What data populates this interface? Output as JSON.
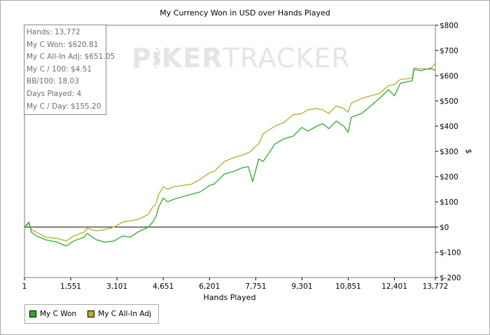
{
  "chart_data": {
    "type": "line",
    "title": "My Currency Won in USD over Hands Played",
    "xlabel": "Hands Played",
    "ylabel": "$",
    "xlim": [
      1,
      13772
    ],
    "ylim": [
      -200,
      800
    ],
    "x_ticks": [
      1,
      1551,
      3101,
      4651,
      6201,
      7751,
      9301,
      10851,
      12401,
      13772
    ],
    "x_tick_labels": [
      "1",
      "1,551",
      "3,101",
      "4,651",
      "6,201",
      "7,751",
      "9,301",
      "10,851",
      "12,401",
      "13,772"
    ],
    "y_ticks": [
      -200,
      -100,
      0,
      100,
      200,
      300,
      400,
      500,
      600,
      700,
      800
    ],
    "y_tick_labels": [
      "$-200",
      "$-100",
      "$0",
      "$100",
      "$200",
      "$300",
      "$400",
      "$500",
      "$600",
      "$700",
      "$800"
    ],
    "grid": false,
    "legend_position": "bottom-left",
    "series": [
      {
        "name": "My C Won",
        "color": "#2eaa2e",
        "x": [
          1,
          150,
          230,
          400,
          700,
          1100,
          1400,
          1650,
          2000,
          2100,
          2400,
          2700,
          3000,
          3300,
          3550,
          3800,
          4150,
          4300,
          4400,
          4500,
          4650,
          4800,
          5000,
          5300,
          5600,
          5900,
          6200,
          6350,
          6700,
          7000,
          7300,
          7500,
          7600,
          7650,
          7850,
          8000,
          8400,
          8700,
          9000,
          9300,
          9500,
          9800,
          10000,
          10200,
          10450,
          10700,
          10850,
          10950,
          11300,
          11600,
          11900,
          12200,
          12400,
          12600,
          13000,
          13050,
          13300,
          13600,
          13772
        ],
        "values": [
          0,
          20,
          -20,
          -35,
          -50,
          -60,
          -75,
          -55,
          -40,
          -25,
          -50,
          -60,
          -55,
          -35,
          -40,
          -20,
          0,
          20,
          40,
          80,
          115,
          100,
          110,
          120,
          130,
          140,
          165,
          170,
          210,
          220,
          235,
          240,
          200,
          180,
          270,
          260,
          330,
          350,
          360,
          395,
          380,
          400,
          410,
          390,
          420,
          400,
          375,
          435,
          450,
          480,
          510,
          545,
          520,
          570,
          580,
          625,
          620,
          630,
          621
        ]
      },
      {
        "name": "My C All-In Adj",
        "color": "#b4ad2a",
        "x": [
          1,
          150,
          230,
          400,
          700,
          1100,
          1400,
          1650,
          2000,
          2100,
          2400,
          2700,
          3000,
          3300,
          3550,
          3800,
          4150,
          4300,
          4400,
          4500,
          4650,
          4800,
          5000,
          5300,
          5600,
          5900,
          6200,
          6350,
          6700,
          7000,
          7300,
          7500,
          7600,
          7650,
          7850,
          8000,
          8400,
          8700,
          9000,
          9300,
          9500,
          9800,
          10000,
          10200,
          10450,
          10700,
          10850,
          10950,
          11300,
          11600,
          11900,
          12200,
          12400,
          12600,
          13000,
          13050,
          13300,
          13600,
          13772
        ],
        "values": [
          0,
          15,
          -10,
          -20,
          -40,
          -45,
          -55,
          -35,
          -20,
          -5,
          -15,
          -10,
          0,
          20,
          25,
          30,
          50,
          80,
          90,
          130,
          160,
          150,
          160,
          165,
          170,
          190,
          215,
          220,
          260,
          275,
          285,
          295,
          300,
          310,
          330,
          370,
          400,
          415,
          445,
          450,
          465,
          470,
          465,
          450,
          480,
          470,
          455,
          490,
          510,
          520,
          530,
          560,
          565,
          585,
          590,
          630,
          628,
          625,
          651
        ]
      }
    ]
  },
  "stats": {
    "hands": "Hands: 13,772",
    "won": "My C Won: $620.81",
    "allin_adj": "My C All-In Adj: $651.05",
    "per100": "My C / 100: $4.51",
    "bb100": "BB/100: 18.03",
    "days": "Days Played: 4",
    "per_day": "My C / Day: $155.20"
  },
  "watermark": {
    "before": "P",
    "after": "KER",
    "brand2": "TRACKER"
  }
}
